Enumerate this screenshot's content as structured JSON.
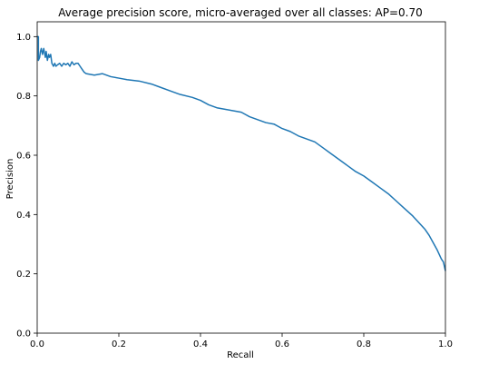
{
  "chart_data": {
    "type": "line",
    "title": "Average precision score, micro-averaged over all classes: AP=0.70",
    "xlabel": "Recall",
    "ylabel": "Precision",
    "xlim": [
      0.0,
      1.0
    ],
    "ylim": [
      0.0,
      1.05
    ],
    "x_ticks": [
      0.0,
      0.2,
      0.4,
      0.6,
      0.8,
      1.0
    ],
    "x_tick_labels": [
      "0.0",
      "0.2",
      "0.4",
      "0.6",
      "0.8",
      "1.0"
    ],
    "y_ticks": [
      0.0,
      0.2,
      0.4,
      0.6,
      0.8,
      1.0
    ],
    "y_tick_labels": [
      "0.0",
      "0.2",
      "0.4",
      "0.6",
      "0.8",
      "1.0"
    ],
    "grid": false,
    "line_color": "#1f77b4",
    "series": [
      {
        "x": [
          0.0,
          0.003,
          0.003,
          0.006,
          0.008,
          0.01,
          0.013,
          0.016,
          0.02,
          0.022,
          0.025,
          0.028,
          0.03,
          0.033,
          0.036,
          0.04,
          0.043,
          0.046,
          0.05,
          0.055,
          0.06,
          0.065,
          0.07,
          0.075,
          0.08,
          0.085,
          0.09,
          0.095,
          0.1,
          0.105,
          0.11,
          0.115,
          0.12,
          0.14,
          0.16,
          0.18,
          0.2,
          0.22,
          0.25,
          0.28,
          0.3,
          0.33,
          0.35,
          0.38,
          0.4,
          0.42,
          0.44,
          0.46,
          0.48,
          0.5,
          0.52,
          0.54,
          0.56,
          0.58,
          0.6,
          0.62,
          0.64,
          0.66,
          0.68,
          0.7,
          0.72,
          0.74,
          0.76,
          0.78,
          0.8,
          0.82,
          0.84,
          0.86,
          0.88,
          0.9,
          0.92,
          0.94,
          0.95,
          0.96,
          0.97,
          0.98,
          0.985,
          0.99,
          0.995,
          1.0
        ],
        "y": [
          1.0,
          1.0,
          0.92,
          0.93,
          0.95,
          0.96,
          0.94,
          0.96,
          0.93,
          0.95,
          0.92,
          0.94,
          0.93,
          0.94,
          0.91,
          0.9,
          0.91,
          0.9,
          0.905,
          0.91,
          0.9,
          0.91,
          0.905,
          0.91,
          0.9,
          0.915,
          0.905,
          0.91,
          0.91,
          0.9,
          0.89,
          0.88,
          0.875,
          0.87,
          0.875,
          0.865,
          0.86,
          0.855,
          0.85,
          0.84,
          0.83,
          0.815,
          0.805,
          0.795,
          0.785,
          0.77,
          0.76,
          0.755,
          0.75,
          0.745,
          0.73,
          0.72,
          0.71,
          0.705,
          0.69,
          0.68,
          0.665,
          0.655,
          0.645,
          0.625,
          0.605,
          0.585,
          0.565,
          0.545,
          0.53,
          0.51,
          0.49,
          0.47,
          0.445,
          0.42,
          0.395,
          0.365,
          0.35,
          0.33,
          0.305,
          0.28,
          0.265,
          0.25,
          0.24,
          0.21
        ]
      }
    ]
  }
}
